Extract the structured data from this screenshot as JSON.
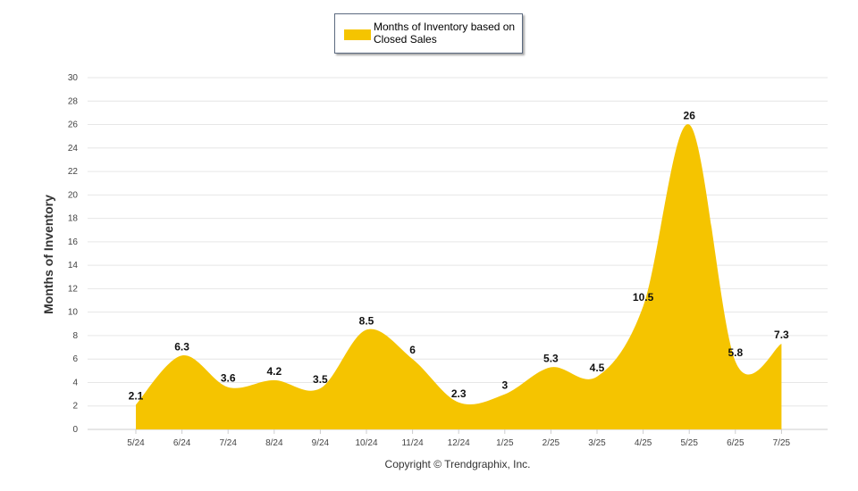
{
  "chart_data": {
    "type": "area",
    "categories": [
      "5/24",
      "6/24",
      "7/24",
      "8/24",
      "9/24",
      "10/24",
      "11/24",
      "12/24",
      "1/25",
      "2/25",
      "3/25",
      "4/25",
      "5/25",
      "6/25",
      "7/25"
    ],
    "series": [
      {
        "name": "Months of Inventory based on Closed Sales",
        "values": [
          2.1,
          6.3,
          3.6,
          4.2,
          3.5,
          8.5,
          6,
          2.3,
          3,
          5.3,
          4.5,
          10.5,
          26,
          5.8,
          7.3
        ],
        "labels": [
          "2.1",
          "6.3",
          "3.6",
          "4.2",
          "3.5",
          "8.5",
          "6",
          "2.3",
          "3",
          "5.3",
          "4.5",
          "10.5",
          "26",
          "5.8",
          "7.3"
        ],
        "color": "#f5c400"
      }
    ],
    "ylabel": "Months of Inventory",
    "xlabel": "",
    "ylim": [
      0,
      30
    ],
    "yticks": [
      0,
      2,
      4,
      6,
      8,
      10,
      12,
      14,
      16,
      18,
      20,
      22,
      24,
      26,
      28,
      30
    ],
    "grid": true,
    "legend_position": "top-center"
  },
  "footer": "Copyright © Trendgraphix, Inc.",
  "colors": {
    "fill": "#f5c400",
    "grid": "#e6e6e6",
    "axis": "#cccccc",
    "tick_text": "#444444"
  }
}
